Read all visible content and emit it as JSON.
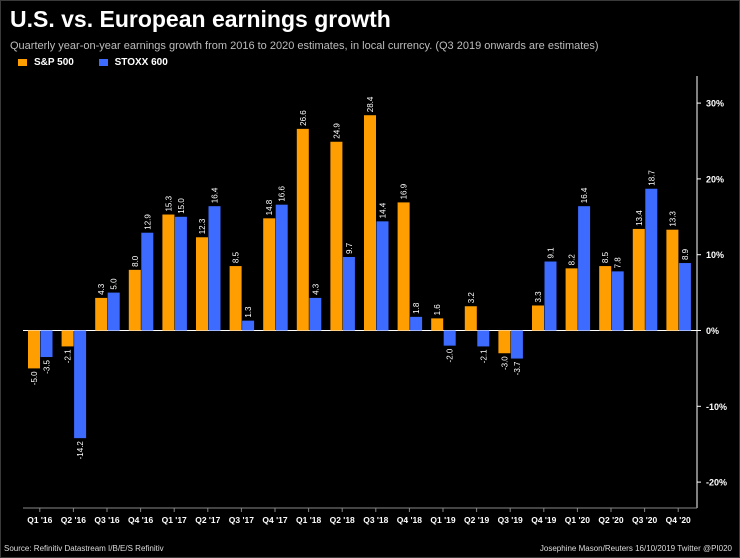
{
  "title": "U.S. vs. European earnings growth",
  "subtitle": "Quarterly year-on-year earnings growth from 2016 to 2020 estimates, in local currency. (Q3 2019 onwards are estimates)",
  "footer": {
    "source": "Source: Refinitiv Datastream  I/B/E/S Refinitiv",
    "credit": "Josephine Mason/Reuters 16/10/2019 Twitter @PI020"
  },
  "colors": {
    "sp500": "#FF9E00",
    "stoxx600": "#3D6BFF",
    "background": "#000000",
    "text": "#FFFFFF"
  },
  "chart_data": {
    "type": "bar",
    "title": "U.S. vs. European earnings growth",
    "xlabel": "",
    "ylabel": "",
    "ylim": [
      -22,
      32
    ],
    "yticks": [
      30,
      20,
      10,
      0,
      -10,
      -20
    ],
    "ytick_labels": [
      "30%",
      "20%",
      "10%",
      "0%",
      "-10%",
      "-20%"
    ],
    "legend_position": "top-left",
    "categories": [
      "Q1 '16",
      "Q2 '16",
      "Q3 '16",
      "Q4 '16",
      "Q1 '17",
      "Q2 '17",
      "Q3 '17",
      "Q4 '17",
      "Q1 '18",
      "Q2 '18",
      "Q3 '18",
      "Q4 '18",
      "Q1 '19",
      "Q2 '19",
      "Q3 '19",
      "Q4 '19",
      "Q1 '20",
      "Q2 '20",
      "Q3 '20",
      "Q4 '20"
    ],
    "series": [
      {
        "name": "S&P 500",
        "values": [
          -5.0,
          -2.1,
          4.3,
          8.0,
          15.3,
          12.3,
          8.5,
          14.8,
          26.6,
          24.9,
          28.4,
          16.9,
          1.6,
          3.2,
          -3.0,
          3.3,
          8.2,
          8.5,
          13.4,
          13.3
        ],
        "labels": [
          "-5.0",
          "-2.1",
          "4.3",
          "8.0",
          "15.3",
          "12.3",
          "8.5",
          "14.8",
          "26.6",
          "24.9",
          "28.4",
          "16.9",
          "1.6",
          "3.2",
          "-3.0",
          "3.3",
          "8.2",
          "8.5",
          "13.4",
          "13.3"
        ]
      },
      {
        "name": "STOXX 600",
        "values": [
          -3.5,
          -14.2,
          5.0,
          12.9,
          15.0,
          16.4,
          1.3,
          16.6,
          4.3,
          9.7,
          14.4,
          1.8,
          -2.0,
          -2.1,
          -3.7,
          9.1,
          16.4,
          7.8,
          18.7,
          8.9
        ],
        "labels": [
          "-3.5",
          "-14.2",
          "5.0",
          "12.9",
          "15.0",
          "16.4",
          "1.3",
          "16.6",
          "4.3",
          "9.7",
          "14.4",
          "1.8",
          "-2.0",
          "-2.1",
          "-3.7",
          "9.1",
          "16.4",
          "7.8",
          "18.7",
          "8.9"
        ]
      }
    ]
  }
}
